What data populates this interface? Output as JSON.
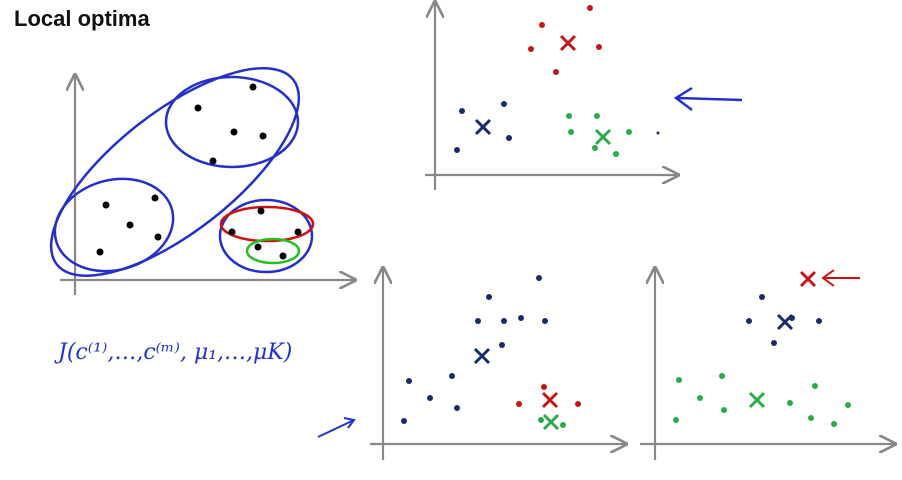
{
  "title": "Local optima",
  "formula": "J(c⁽¹⁾,…,c⁽ᵐ⁾, μ₁,…,μK)"
}
